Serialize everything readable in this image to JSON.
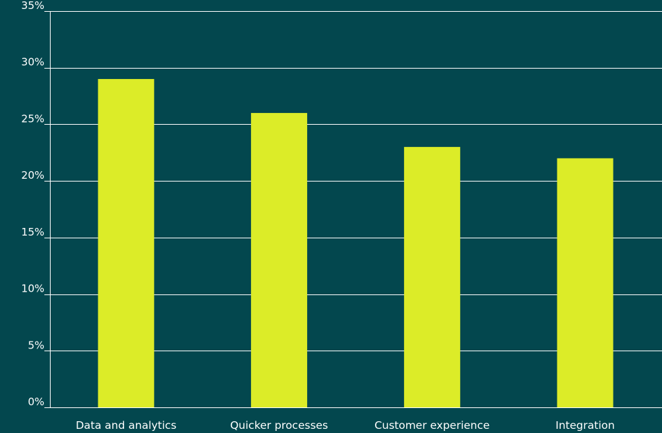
{
  "chart_data": {
    "type": "bar",
    "title": "",
    "xlabel": "",
    "ylabel": "",
    "categories": [
      "Data and analytics",
      "Quicker processes",
      "Customer experience",
      "Integration"
    ],
    "values": [
      29,
      26,
      23,
      22
    ],
    "ylim": [
      0,
      35
    ],
    "y_ticks": [
      0,
      5,
      10,
      15,
      20,
      25,
      30,
      35
    ],
    "y_tick_labels": [
      "0%",
      "5%",
      "10%",
      "15%",
      "20%",
      "25%",
      "30%",
      "35%"
    ],
    "grid": true,
    "legend": "none",
    "colors": {
      "background": "#03474e",
      "bar": "#dcec28",
      "grid": "#ffffff",
      "text": "#ffffff"
    }
  }
}
